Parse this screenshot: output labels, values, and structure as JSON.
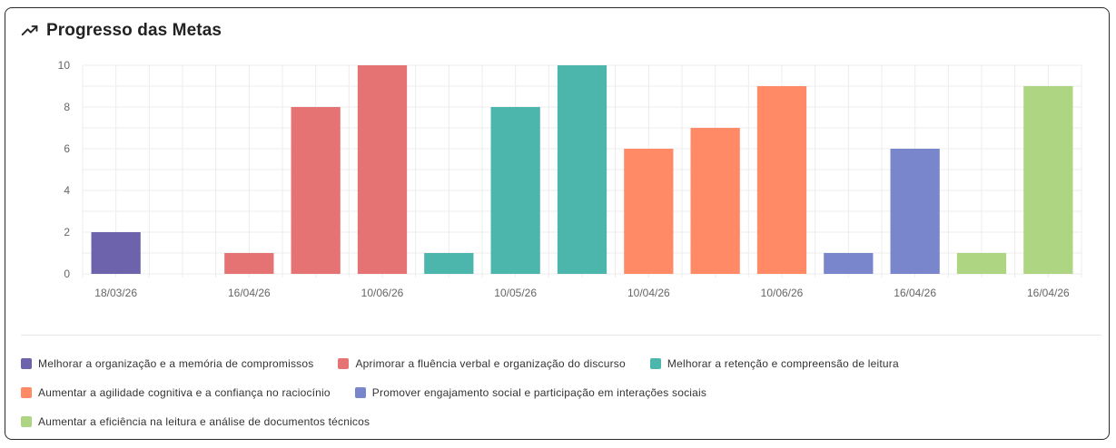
{
  "header": {
    "title": "Progresso das Metas",
    "icon": "trending-up-icon"
  },
  "colors": {
    "grid": "#ececec",
    "tick_text": "#666666",
    "goal_1": "#6c63ac",
    "goal_2": "#e57373",
    "goal_3": "#4db6ac",
    "goal_4": "#ff8a65",
    "goal_5": "#7986cb",
    "goal_6": "#aed581"
  },
  "chart_data": {
    "type": "bar",
    "title": "Progresso das Metas",
    "xlabel": "",
    "ylabel": "",
    "ylim": [
      0,
      10
    ],
    "yticks": [
      0,
      2,
      4,
      6,
      8,
      10
    ],
    "grid": true,
    "legend_position": "bottom",
    "x_tick_labels": [
      "18/03/26",
      "16/04/26",
      "10/06/26",
      "10/05/26",
      "10/04/26",
      "10/06/26",
      "16/04/26",
      "16/04/26"
    ],
    "bars": [
      {
        "series": 0,
        "value": 2
      },
      {
        "series": 0,
        "value": 0
      },
      {
        "series": 1,
        "value": 1
      },
      {
        "series": 1,
        "value": 8
      },
      {
        "series": 1,
        "value": 10
      },
      {
        "series": 2,
        "value": 1
      },
      {
        "series": 2,
        "value": 8
      },
      {
        "series": 2,
        "value": 10
      },
      {
        "series": 3,
        "value": 6
      },
      {
        "series": 3,
        "value": 7
      },
      {
        "series": 3,
        "value": 9
      },
      {
        "series": 4,
        "value": 1
      },
      {
        "series": 4,
        "value": 6
      },
      {
        "series": 5,
        "value": 1
      },
      {
        "series": 5,
        "value": 9
      }
    ],
    "series": [
      {
        "name": "Melhorar a organização e a memória de compromissos",
        "color": "#6c63ac"
      },
      {
        "name": "Aprimorar a fluência verbal e organização do discurso",
        "color": "#e57373"
      },
      {
        "name": "Melhorar a retenção e compreensão de leitura",
        "color": "#4db6ac"
      },
      {
        "name": "Aumentar a agilidade cognitiva e a confiança no raciocínio",
        "color": "#ff8a65"
      },
      {
        "name": "Promover engajamento social e participação em interações sociais",
        "color": "#7986cb"
      },
      {
        "name": "Aumentar a eficiência na leitura e análise de documentos técnicos",
        "color": "#aed581"
      }
    ]
  }
}
